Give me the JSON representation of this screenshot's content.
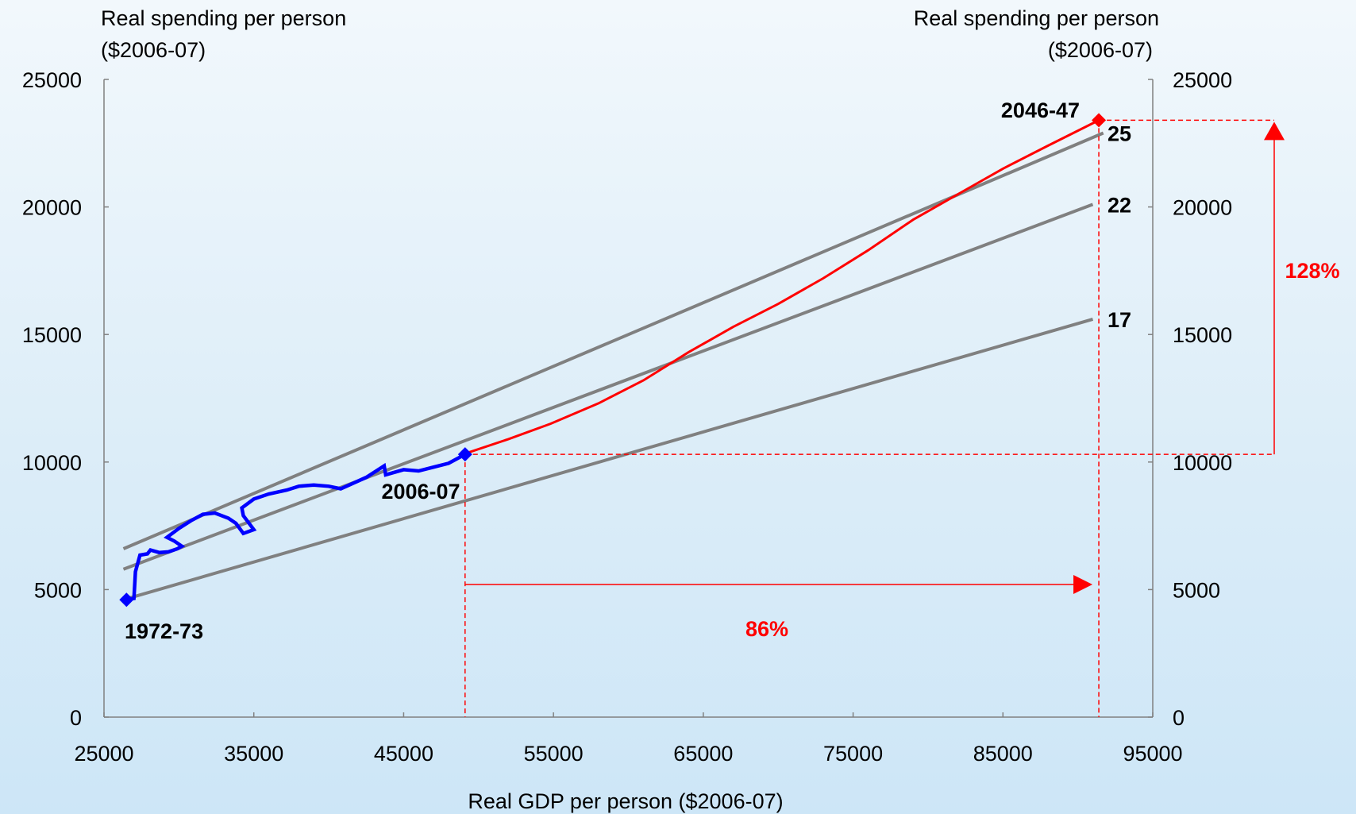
{
  "chart_data": {
    "type": "line",
    "xlabel": "Real GDP per person ($2006-07)",
    "ylabel_left": [
      "Real spending per person",
      "($2006-07)"
    ],
    "ylabel_right": [
      "Real spending per person",
      "($2006-07)"
    ],
    "xlim": [
      25000,
      95000
    ],
    "ylim": [
      0,
      25000
    ],
    "x_ticks": [
      25000,
      35000,
      45000,
      55000,
      65000,
      75000,
      85000,
      95000
    ],
    "y_ticks_left": [
      0,
      5000,
      10000,
      15000,
      20000,
      25000
    ],
    "y_ticks_right": [
      0,
      5000,
      10000,
      15000,
      20000,
      25000
    ],
    "grid": false,
    "colors": {
      "reference": "#808080",
      "historical": "#0000ff",
      "projection": "#ff0000",
      "annotation": "#ff0000"
    },
    "series": [
      {
        "role": "reference",
        "label": "17",
        "points": [
          [
            26300,
            4600
          ],
          [
            91000,
            15600
          ]
        ]
      },
      {
        "role": "reference",
        "label": "22",
        "points": [
          [
            26300,
            5800
          ],
          [
            91000,
            20100
          ]
        ]
      },
      {
        "role": "reference",
        "label": "25",
        "points": [
          [
            26300,
            6600
          ],
          [
            91700,
            22900
          ]
        ]
      },
      {
        "role": "historical",
        "points": [
          [
            26500,
            4600
          ],
          [
            27000,
            4650
          ],
          [
            27100,
            5700
          ],
          [
            27400,
            6350
          ],
          [
            27900,
            6400
          ],
          [
            28100,
            6550
          ],
          [
            28700,
            6450
          ],
          [
            29300,
            6480
          ],
          [
            29900,
            6600
          ],
          [
            30200,
            6700
          ],
          [
            29700,
            6900
          ],
          [
            29200,
            7050
          ],
          [
            30000,
            7400
          ],
          [
            30800,
            7700
          ],
          [
            31600,
            7950
          ],
          [
            32400,
            8000
          ],
          [
            33300,
            7800
          ],
          [
            33800,
            7600
          ],
          [
            34300,
            7200
          ],
          [
            35000,
            7350
          ],
          [
            34300,
            7900
          ],
          [
            34200,
            8200
          ],
          [
            35000,
            8550
          ],
          [
            36000,
            8750
          ],
          [
            37200,
            8900
          ],
          [
            38000,
            9050
          ],
          [
            39000,
            9100
          ],
          [
            40000,
            9050
          ],
          [
            40800,
            8950
          ],
          [
            42500,
            9400
          ],
          [
            43700,
            9850
          ],
          [
            43800,
            9500
          ],
          [
            45000,
            9700
          ],
          [
            46000,
            9650
          ],
          [
            47000,
            9800
          ],
          [
            48000,
            9950
          ],
          [
            49100,
            10300
          ]
        ]
      },
      {
        "role": "projection",
        "points": [
          [
            49200,
            10350
          ],
          [
            52000,
            10900
          ],
          [
            54800,
            11500
          ],
          [
            58000,
            12300
          ],
          [
            61000,
            13200
          ],
          [
            64000,
            14300
          ],
          [
            67000,
            15300
          ],
          [
            70000,
            16200
          ],
          [
            73000,
            17200
          ],
          [
            76000,
            18300
          ],
          [
            79000,
            19500
          ],
          [
            82000,
            20500
          ],
          [
            85000,
            21500
          ],
          [
            88000,
            22400
          ],
          [
            91400,
            23400
          ]
        ]
      }
    ],
    "markers": [
      {
        "x": 26500,
        "y": 4600,
        "label": "1972-73"
      },
      {
        "x": 49100,
        "y": 10300,
        "label": "2006-07"
      },
      {
        "x": 91400,
        "y": 23400,
        "label": "2046-47"
      }
    ],
    "reference_labels": [
      "25",
      "22",
      "17"
    ],
    "annotations": {
      "gdp_growth": {
        "label": "86%",
        "x_from": 49100,
        "x_to": 91400
      },
      "spending_growth": {
        "label": "128%",
        "y_from": 10300,
        "y_to": 23400
      }
    }
  }
}
